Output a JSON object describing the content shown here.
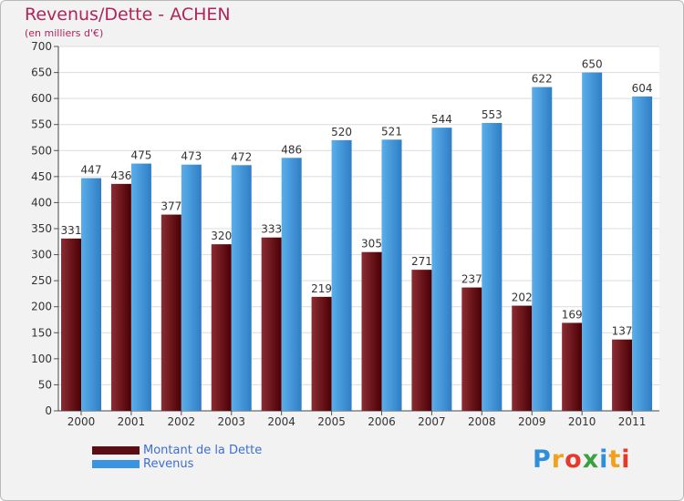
{
  "title": "Revenus/Dette - ACHEN",
  "subtitle": "(en milliers d'€)",
  "colors": {
    "title": "#b0245a",
    "debt_light": "#8b2c33",
    "debt_dark": "#4a0004",
    "revenue_light": "#5aaee9",
    "revenue_dark": "#2f7ec6",
    "legend_text": "#3d6fd0"
  },
  "chart_data": {
    "type": "bar",
    "title": "Revenus/Dette - ACHEN",
    "subtitle": "(en milliers d'€)",
    "categories": [
      "2000",
      "2001",
      "2002",
      "2003",
      "2004",
      "2005",
      "2006",
      "2007",
      "2008",
      "2009",
      "2010",
      "2011"
    ],
    "series": [
      {
        "name": "Montant de la Dette",
        "values": [
          331,
          436,
          377,
          320,
          333,
          219,
          305,
          271,
          237,
          202,
          169,
          137
        ]
      },
      {
        "name": "Revenus",
        "values": [
          447,
          475,
          473,
          472,
          486,
          520,
          521,
          544,
          553,
          622,
          650,
          604
        ]
      }
    ],
    "ylim": [
      0,
      700
    ],
    "yticks": [
      0,
      50,
      100,
      150,
      200,
      250,
      300,
      350,
      400,
      450,
      500,
      550,
      600,
      650,
      700
    ],
    "grid": true,
    "legend_position": "bottom-left"
  },
  "legend": {
    "items": [
      {
        "label": "Montant de la Dette",
        "color": "#5a0d12"
      },
      {
        "label": "Revenus",
        "color": "#3a94e0"
      }
    ]
  },
  "logo": {
    "text": "Proxiti",
    "letters": [
      {
        "ch": "P",
        "color": "#2f8fd8"
      },
      {
        "ch": "r",
        "color": "#f0a21c"
      },
      {
        "ch": "o",
        "color": "#e43a2b"
      },
      {
        "ch": "x",
        "color": "#3aa13e"
      },
      {
        "ch": "i",
        "color": "#2f8fd8"
      },
      {
        "ch": "t",
        "color": "#f0a21c"
      },
      {
        "ch": "i",
        "color": "#e43a2b"
      }
    ]
  }
}
